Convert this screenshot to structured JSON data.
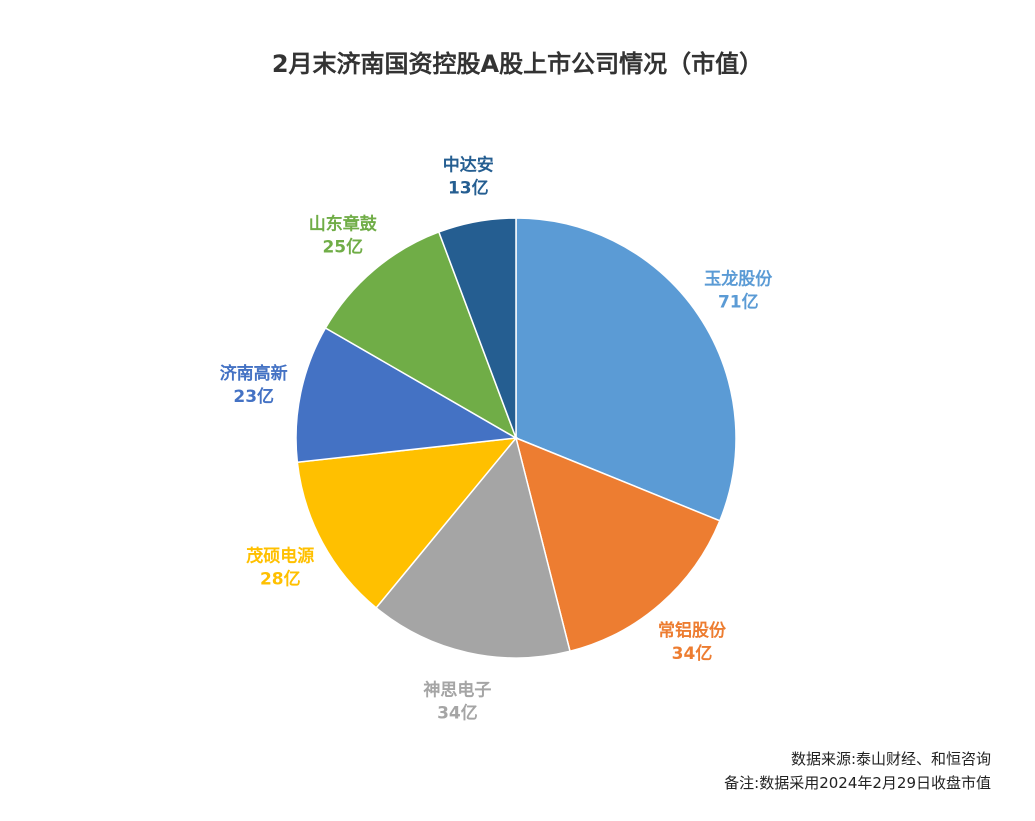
{
  "chart_data": {
    "type": "pie",
    "title": "2月末济南国资控股A股上市公司情况（市值）",
    "unit": "亿",
    "slices": [
      {
        "name": "玉龙股份",
        "value": 71,
        "label": "71亿",
        "color": "#5B9BD5"
      },
      {
        "name": "常铝股份",
        "value": 34,
        "label": "34亿",
        "color": "#ED7D31"
      },
      {
        "name": "神思电子",
        "value": 34,
        "label": "34亿",
        "color": "#A5A5A5"
      },
      {
        "name": "茂硕电源",
        "value": 28,
        "label": "28亿",
        "color": "#FFC000"
      },
      {
        "name": "济南高新",
        "value": 23,
        "label": "23亿",
        "color": "#4472C4"
      },
      {
        "name": "山东章鼓",
        "value": 25,
        "label": "25亿",
        "color": "#70AD47"
      },
      {
        "name": "中达安",
        "value": 13,
        "label": "13亿",
        "color": "#255E91"
      }
    ],
    "start_angle_deg": 0,
    "direction": "clockwise"
  },
  "footer": {
    "source": "数据来源:泰山财经、和恒咨询",
    "note": "备注:数据采用2024年2月29日收盘市值"
  }
}
